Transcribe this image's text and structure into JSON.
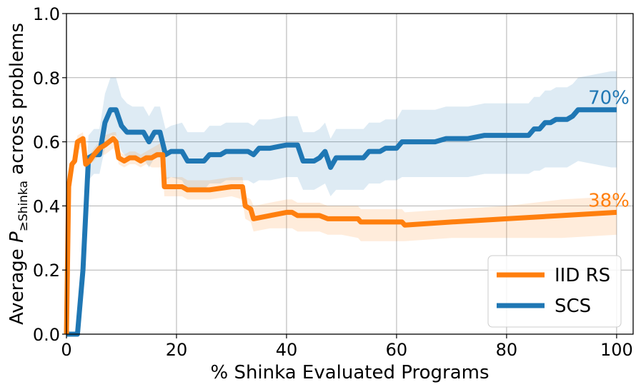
{
  "chart_data": {
    "type": "line",
    "xlabel": "% Shinka Evaluated Programs",
    "ylabel_parts": {
      "prefix": "Average ",
      "symbol": "P",
      "subscript": "≥Shinka",
      "suffix": " across problems"
    },
    "xlim": [
      0,
      103
    ],
    "ylim": [
      0,
      1.0
    ],
    "xticks": [
      0,
      20,
      40,
      60,
      80,
      100
    ],
    "yticks": [
      0.0,
      0.2,
      0.4,
      0.6,
      0.8,
      1.0
    ],
    "xtick_labels": [
      "0",
      "20",
      "40",
      "60",
      "80",
      "100"
    ],
    "ytick_labels": [
      "0.0",
      "0.2",
      "0.4",
      "0.6",
      "0.8",
      "1.0"
    ],
    "grid": true,
    "legend_position": "bottom-right",
    "series": [
      {
        "name": "IID RS",
        "color": "#ff7f0e",
        "end_label": "38%",
        "x": [
          0,
          0.4,
          1,
          1.5,
          2,
          3,
          3.5,
          4.2,
          5,
          6,
          7,
          8.5,
          9,
          9.5,
          10.5,
          11.5,
          12.5,
          13.5,
          14.5,
          15.5,
          16.5,
          17.5,
          17.8,
          19,
          21,
          22,
          25,
          26,
          30,
          32,
          32.5,
          33.5,
          34,
          37,
          40,
          41,
          42,
          43,
          45,
          46,
          47.5,
          50,
          53,
          53.5,
          55,
          61,
          61.5,
          70,
          80,
          90,
          100
        ],
        "y": [
          0.0,
          0.46,
          0.53,
          0.54,
          0.6,
          0.61,
          0.53,
          0.54,
          0.56,
          0.58,
          0.59,
          0.61,
          0.6,
          0.55,
          0.54,
          0.55,
          0.55,
          0.54,
          0.55,
          0.55,
          0.56,
          0.56,
          0.46,
          0.46,
          0.46,
          0.45,
          0.45,
          0.45,
          0.46,
          0.46,
          0.4,
          0.39,
          0.36,
          0.37,
          0.38,
          0.38,
          0.37,
          0.37,
          0.37,
          0.37,
          0.36,
          0.36,
          0.36,
          0.35,
          0.35,
          0.35,
          0.34,
          0.35,
          0.36,
          0.37,
          0.38
        ],
        "lower": [
          0.0,
          0.45,
          0.52,
          0.53,
          0.57,
          0.59,
          0.52,
          0.53,
          0.54,
          0.56,
          0.56,
          0.58,
          0.57,
          0.53,
          0.52,
          0.53,
          0.53,
          0.52,
          0.53,
          0.52,
          0.52,
          0.52,
          0.43,
          0.43,
          0.43,
          0.42,
          0.42,
          0.42,
          0.43,
          0.42,
          0.36,
          0.35,
          0.32,
          0.33,
          0.33,
          0.33,
          0.32,
          0.32,
          0.32,
          0.32,
          0.31,
          0.31,
          0.3,
          0.29,
          0.29,
          0.29,
          0.29,
          0.3,
          0.3,
          0.3,
          0.31
        ],
        "upper": [
          0.0,
          0.47,
          0.54,
          0.56,
          0.62,
          0.63,
          0.55,
          0.56,
          0.58,
          0.6,
          0.62,
          0.63,
          0.63,
          0.57,
          0.56,
          0.57,
          0.57,
          0.56,
          0.57,
          0.58,
          0.59,
          0.6,
          0.49,
          0.49,
          0.49,
          0.48,
          0.48,
          0.48,
          0.49,
          0.49,
          0.43,
          0.42,
          0.4,
          0.41,
          0.42,
          0.42,
          0.41,
          0.41,
          0.41,
          0.41,
          0.4,
          0.4,
          0.4,
          0.39,
          0.39,
          0.39,
          0.38,
          0.39,
          0.4,
          0.42,
          0.43
        ]
      },
      {
        "name": "SCS",
        "color": "#1f77b4",
        "end_label": "70%",
        "x": [
          0,
          2,
          3,
          4,
          5,
          6,
          7,
          8,
          9,
          10,
          11,
          12,
          14,
          15,
          16,
          17,
          18,
          19,
          21,
          22,
          25,
          26,
          28,
          29,
          32,
          33,
          34,
          35,
          37,
          40,
          42,
          43,
          45,
          46,
          47,
          48,
          49,
          51,
          53,
          54,
          55,
          56,
          57,
          58,
          59,
          60,
          61,
          64,
          67,
          69,
          72,
          73,
          76,
          79,
          84,
          85,
          86,
          87,
          88,
          89,
          91,
          92,
          93,
          96,
          99,
          100
        ],
        "y": [
          0.0,
          0.0,
          0.2,
          0.55,
          0.56,
          0.56,
          0.66,
          0.7,
          0.7,
          0.65,
          0.63,
          0.63,
          0.63,
          0.6,
          0.63,
          0.63,
          0.56,
          0.57,
          0.57,
          0.54,
          0.54,
          0.56,
          0.56,
          0.57,
          0.57,
          0.57,
          0.56,
          0.58,
          0.58,
          0.59,
          0.59,
          0.54,
          0.54,
          0.55,
          0.57,
          0.52,
          0.55,
          0.55,
          0.55,
          0.55,
          0.57,
          0.57,
          0.57,
          0.58,
          0.58,
          0.58,
          0.6,
          0.6,
          0.6,
          0.61,
          0.61,
          0.61,
          0.62,
          0.62,
          0.62,
          0.64,
          0.64,
          0.66,
          0.66,
          0.67,
          0.67,
          0.68,
          0.7,
          0.7,
          0.7,
          0.7
        ],
        "lower": [
          0.0,
          0.0,
          0.15,
          0.48,
          0.5,
          0.5,
          0.58,
          0.62,
          0.62,
          0.57,
          0.55,
          0.55,
          0.55,
          0.52,
          0.55,
          0.55,
          0.48,
          0.49,
          0.48,
          0.45,
          0.45,
          0.47,
          0.47,
          0.48,
          0.48,
          0.48,
          0.47,
          0.48,
          0.48,
          0.49,
          0.49,
          0.45,
          0.45,
          0.46,
          0.47,
          0.43,
          0.45,
          0.45,
          0.45,
          0.45,
          0.47,
          0.47,
          0.47,
          0.48,
          0.48,
          0.48,
          0.49,
          0.49,
          0.49,
          0.49,
          0.49,
          0.49,
          0.5,
          0.5,
          0.5,
          0.51,
          0.51,
          0.52,
          0.52,
          0.52,
          0.52,
          0.53,
          0.54,
          0.53,
          0.52,
          0.52
        ],
        "upper": [
          0.0,
          0.0,
          0.25,
          0.62,
          0.64,
          0.64,
          0.75,
          0.8,
          0.8,
          0.74,
          0.72,
          0.71,
          0.71,
          0.68,
          0.71,
          0.71,
          0.64,
          0.65,
          0.66,
          0.63,
          0.63,
          0.65,
          0.65,
          0.66,
          0.66,
          0.66,
          0.65,
          0.67,
          0.67,
          0.68,
          0.68,
          0.63,
          0.63,
          0.64,
          0.66,
          0.61,
          0.64,
          0.64,
          0.64,
          0.64,
          0.66,
          0.66,
          0.66,
          0.67,
          0.67,
          0.67,
          0.7,
          0.7,
          0.7,
          0.71,
          0.71,
          0.71,
          0.72,
          0.72,
          0.72,
          0.74,
          0.74,
          0.76,
          0.76,
          0.77,
          0.77,
          0.78,
          0.8,
          0.81,
          0.82,
          0.82
        ]
      }
    ]
  }
}
